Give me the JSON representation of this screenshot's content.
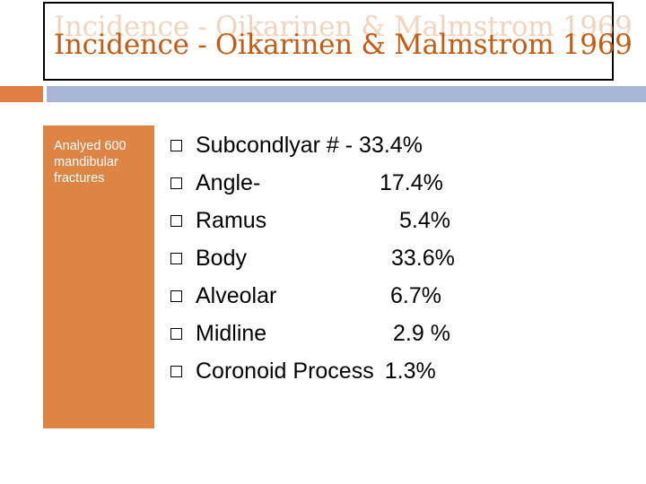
{
  "slide": {
    "title": "Incidence - Oikarinen & Malmstrom 1969",
    "sidebar_text": "Analyed 600 mandibular fractures",
    "items": [
      {
        "label": "Subcondlyar # - 33.4%",
        "value": ""
      },
      {
        "label": "Angle-",
        "value": "17.4%"
      },
      {
        "label": "Ramus",
        "value": "5.4%"
      },
      {
        "label": "Body",
        "value": "33.6%"
      },
      {
        "label": "Alveolar",
        "value": "6.7%"
      },
      {
        "label": "Midline",
        "value": "2.9 %"
      },
      {
        "label": "Coronoid Process",
        "value": "1.3%"
      }
    ],
    "bullet_icon": "square-bullet-icon",
    "colors": {
      "title": "#c55a11",
      "sidebar": "#de8545",
      "accent_orange": "#e07e45",
      "accent_blue": "#a8b7d8"
    }
  }
}
